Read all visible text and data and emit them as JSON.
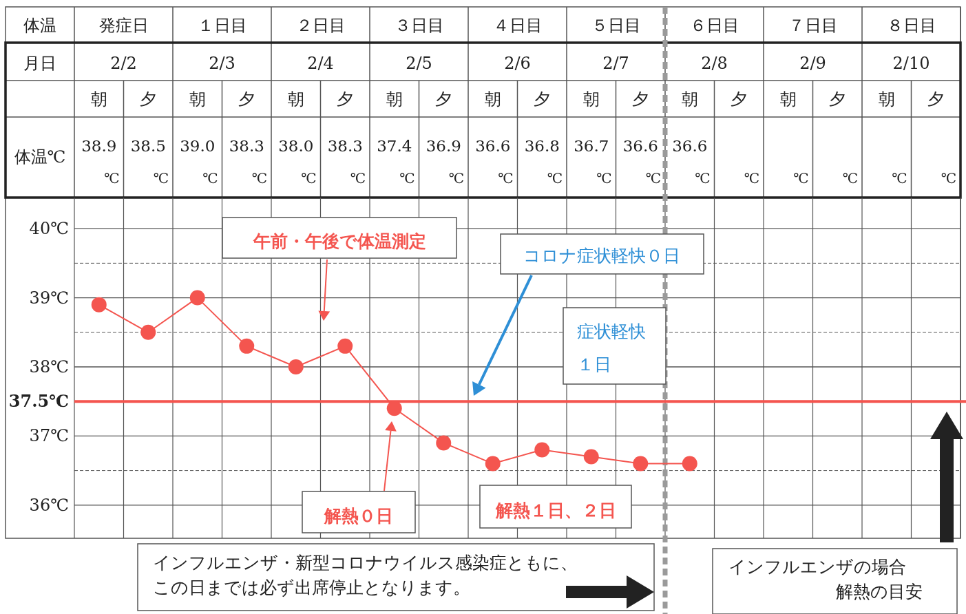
{
  "chart_data": {
    "type": "line",
    "categories": [
      "朝",
      "夕",
      "朝",
      "夕",
      "朝",
      "夕",
      "朝",
      "夕",
      "朝",
      "夕",
      "朝",
      "夕",
      "朝",
      "夕",
      "朝",
      "夕",
      "朝",
      "夕"
    ],
    "series": [
      {
        "color": "#f4554f",
        "values": [
          38.9,
          38.5,
          39.0,
          38.3,
          38.0,
          38.3,
          37.4,
          36.9,
          36.6,
          36.8,
          36.7,
          36.6,
          36.6,
          null,
          null,
          null,
          null,
          null
        ],
        "value_labels": [
          "38.9℃",
          "38.5℃",
          "39.0℃",
          "38.3℃",
          "38.0℃",
          "38.3℃",
          "37.4℃",
          "36.9℃",
          "36.6℃",
          "36.8℃",
          "36.7℃",
          "36.6℃",
          "36.6℃",
          "℃",
          "℃",
          "℃",
          "℃",
          "℃"
        ]
      }
    ],
    "ylim": [
      35.52,
      40.45
    ],
    "yticks": [
      {
        "value": 36,
        "label": "36℃"
      },
      {
        "value": 36.5,
        "label": null
      },
      {
        "value": 37,
        "label": "37℃"
      },
      {
        "value": 38,
        "label": "38℃"
      },
      {
        "value": 38.5,
        "label": null
      },
      {
        "value": 39,
        "label": "39℃"
      },
      {
        "value": 39.5,
        "label": null
      },
      {
        "value": 40,
        "label": "40℃"
      }
    ],
    "grid": true,
    "marker": "circle",
    "line_style": "solid",
    "ref_lines": [
      {
        "axis": "y",
        "value": 37.5,
        "label": "37.5℃",
        "color": "#f4554f",
        "line_style": "solid"
      }
    ],
    "annotations": [
      "午前・午後で体温測定",
      "コロナ症状軽快０日",
      "症状軽快１日",
      "解熱０日",
      "解熱１日、２日",
      "インフルエンザ・新型コロナウイルス感染症ともに、この日までは必ず出席停止となります。",
      "インフルエンザの場合解熱の目安",
      "体温",
      "発症日",
      "１日目",
      "２日目",
      "３日目",
      "４日目",
      "５日目",
      "６日目",
      "７日目",
      "８日目",
      "月日",
      "2/2",
      "2/3",
      "2/4",
      "2/5",
      "2/6",
      "2/7",
      "2/8",
      "2/9",
      "2/10",
      "体温℃"
    ]
  }
}
